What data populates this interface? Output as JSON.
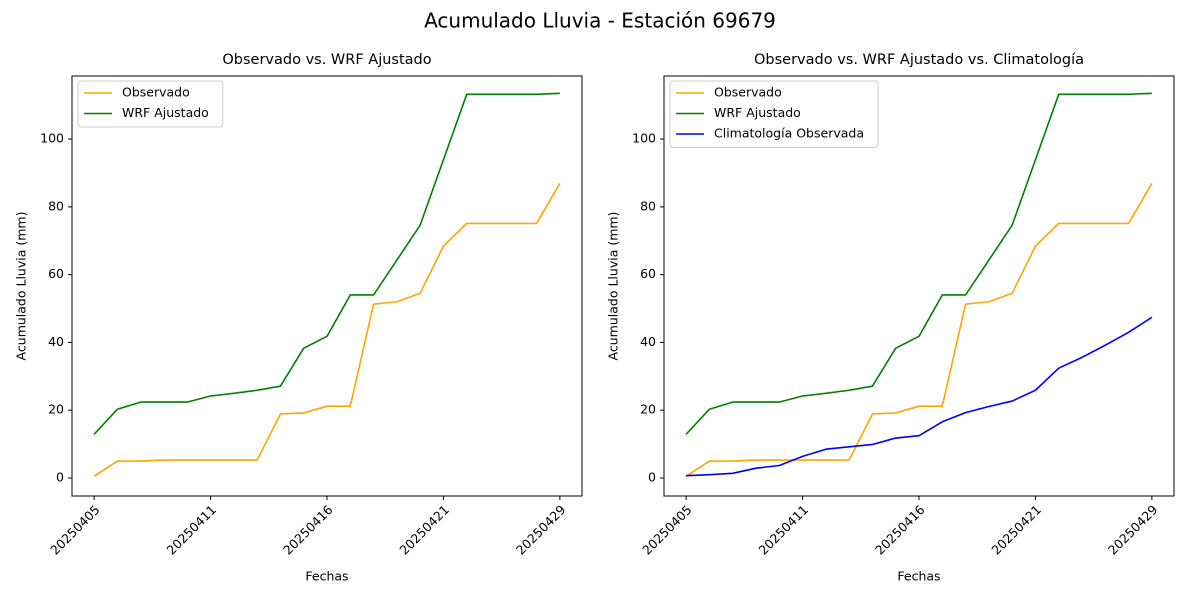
{
  "title": "Acumulado Lluvia - Estación 69679",
  "chart_data": [
    {
      "type": "line",
      "title": "Observado vs. WRF Ajustado",
      "xlabel": "Fechas",
      "ylabel": "Acumulado Lluvia (mm)",
      "categories": [
        "20250405",
        null,
        null,
        null,
        null,
        "20250411",
        null,
        null,
        null,
        null,
        "20250416",
        null,
        null,
        null,
        null,
        "20250421",
        null,
        null,
        null,
        null,
        "20250429"
      ],
      "series": [
        {
          "name": "Observado",
          "color": "orange",
          "values": [
            0.5,
            5.0,
            5.0,
            5.3,
            5.3,
            5.3,
            5.3,
            5.3,
            18.9,
            19.2,
            21.2,
            21.2,
            51.3,
            52.0,
            54.5,
            68.4,
            75.1,
            75.1,
            75.1,
            75.1,
            86.9
          ]
        },
        {
          "name": "WRF Ajustado",
          "color": "green",
          "values": [
            12.9,
            20.3,
            22.4,
            22.4,
            22.4,
            24.2,
            25.0,
            25.9,
            27.1,
            38.3,
            41.8,
            54.0,
            54.0,
            64.3,
            74.6,
            93.9,
            113.2,
            113.2,
            113.2,
            113.2,
            113.5
          ]
        }
      ],
      "ylim": [
        -5.3,
        118.6
      ],
      "yticks": [
        0,
        20,
        40,
        60,
        80,
        100
      ],
      "legend": "upper left",
      "grid": false
    },
    {
      "type": "line",
      "title": "Observado vs. WRF Ajustado vs. Climatología",
      "xlabel": "Fechas",
      "ylabel": "Acumulado Lluvia (mm)",
      "categories": [
        "20250405",
        null,
        null,
        null,
        null,
        "20250411",
        null,
        null,
        null,
        null,
        "20250416",
        null,
        null,
        null,
        null,
        "20250421",
        null,
        null,
        null,
        null,
        "20250429"
      ],
      "series": [
        {
          "name": "Observado",
          "color": "orange",
          "values": [
            0.5,
            5.0,
            5.0,
            5.3,
            5.3,
            5.3,
            5.3,
            5.3,
            18.9,
            19.2,
            21.2,
            21.2,
            51.3,
            52.0,
            54.5,
            68.4,
            75.1,
            75.1,
            75.1,
            75.1,
            86.9
          ]
        },
        {
          "name": "WRF Ajustado",
          "color": "green",
          "values": [
            12.9,
            20.3,
            22.4,
            22.4,
            22.4,
            24.2,
            25.0,
            25.9,
            27.1,
            38.3,
            41.8,
            54.0,
            54.0,
            64.3,
            74.6,
            93.9,
            113.2,
            113.2,
            113.2,
            113.2,
            113.5
          ]
        },
        {
          "name": "Climatología Observada",
          "color": "blue",
          "values": [
            0.7,
            1.0,
            1.4,
            2.9,
            3.7,
            6.4,
            8.5,
            9.2,
            9.9,
            11.8,
            12.5,
            16.6,
            19.3,
            21.1,
            22.7,
            25.9,
            32.4,
            35.6,
            39.2,
            43.0,
            47.4
          ]
        }
      ],
      "ylim": [
        -5.3,
        118.6
      ],
      "yticks": [
        0,
        20,
        40,
        60,
        80,
        100
      ],
      "legend": "upper left",
      "grid": false
    }
  ]
}
